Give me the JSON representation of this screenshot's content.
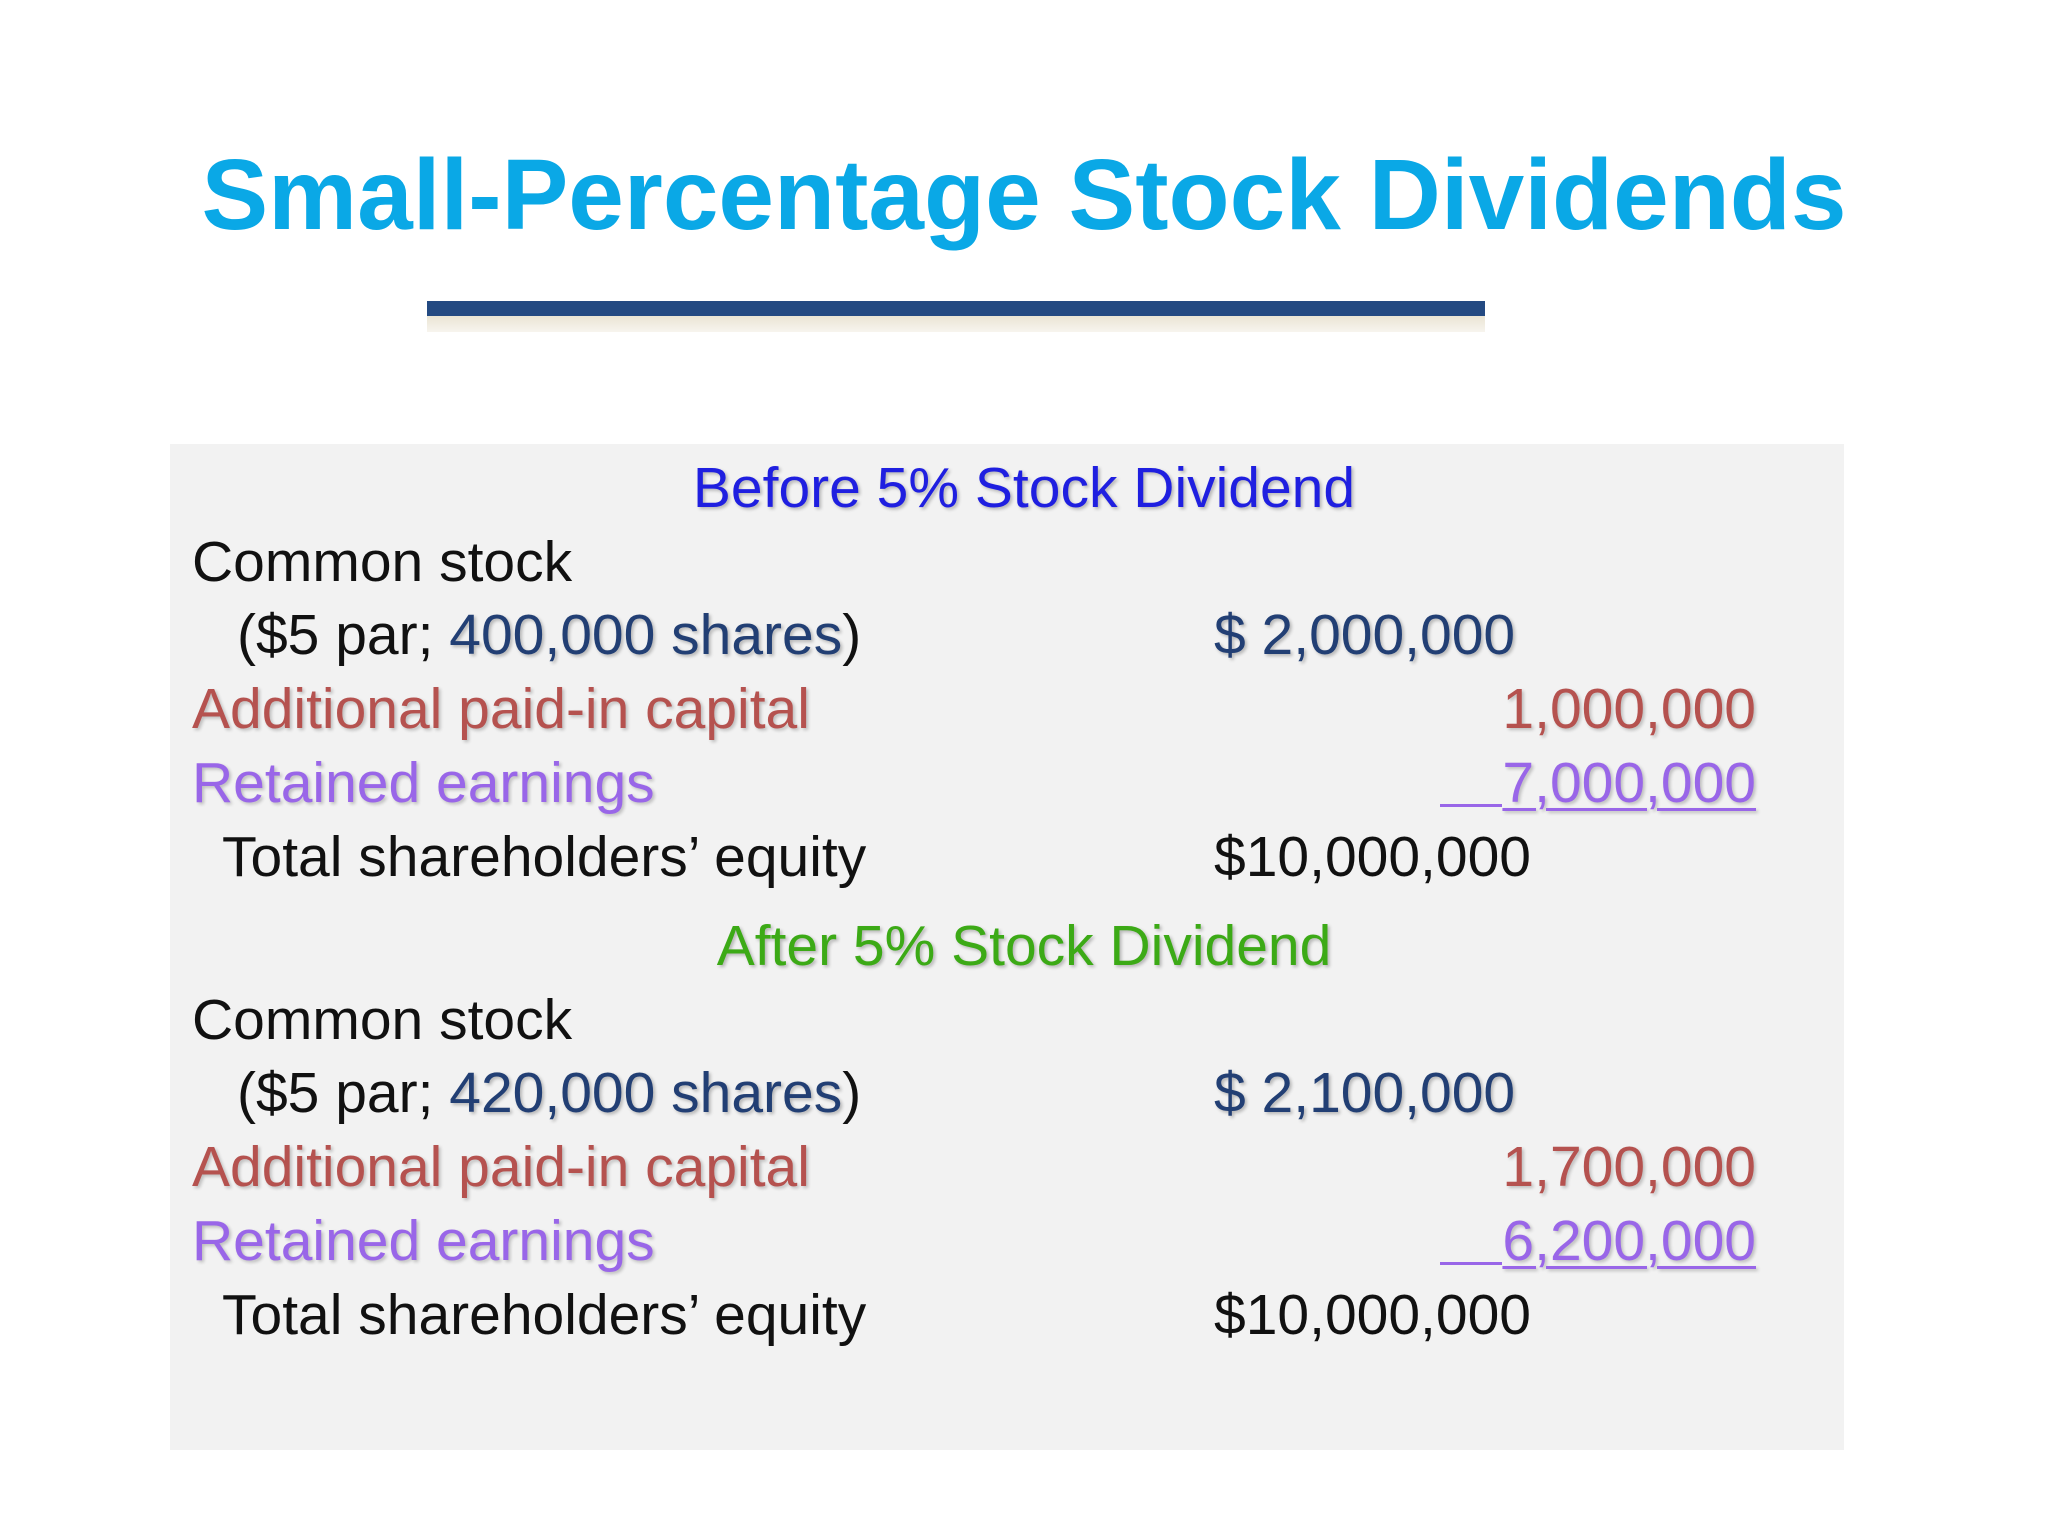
{
  "slide": {
    "title": "Small-Percentage Stock Dividends"
  },
  "before": {
    "heading": "Before 5% Stock Dividend",
    "common_stock_label": "Common stock",
    "par_open": "($5 par; ",
    "shares": "400,000 shares",
    "par_close": ")",
    "common_stock_amount": "$  2,000,000",
    "apic_label": "Additional paid-in capital",
    "apic_amount": "1,000,000",
    "retained_label": "Retained earnings",
    "retained_amount": "7,000,000",
    "total_label": "Total shareholders’ equity",
    "total_amount": "$10,000,000"
  },
  "after": {
    "heading": "After 5% Stock Dividend",
    "common_stock_label": "Common stock",
    "par_open": "($5 par; ",
    "shares": "420,000 shares",
    "par_close": ")",
    "common_stock_amount": "$  2,100,000",
    "apic_label": "Additional paid-in capital",
    "apic_amount": "1,700,000",
    "retained_label": "Retained earnings",
    "retained_amount": "6,200,000",
    "total_label": "Total shareholders’ equity",
    "total_amount": "$10,000,000"
  },
  "colors": {
    "title": "#0aa8e6",
    "rule": "#244a82",
    "before_heading": "#1f1fe0",
    "after_heading": "#3caa16",
    "shares_and_stock_amount": "#223f74",
    "apic": "#b5524f",
    "retained": "#9966e8",
    "panel": "#f2f2f2"
  }
}
